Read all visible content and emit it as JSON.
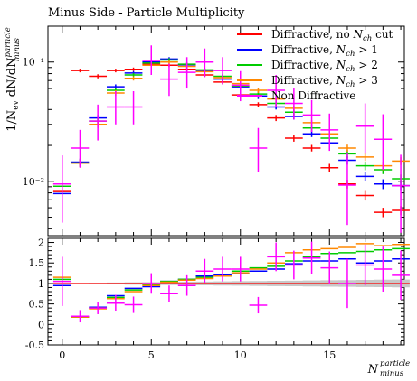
{
  "chart_data": [
    {
      "type": "scatter",
      "title": "Minus Side - Particle Multiplicity",
      "ylabel": "1/N_ev dN/dN_minus^particle",
      "yscale": "log",
      "ylim": [
        0.0035,
        0.2
      ],
      "xlim": [
        -0.8,
        19.2
      ],
      "yticks": [
        {
          "value": 0.01,
          "label": "10⁻²"
        },
        {
          "value": 0.1,
          "label": "10⁻¹"
        }
      ],
      "legend_position": "top-right",
      "series": [
        {
          "name": "Diffractive, no N_ch cut",
          "color": "#ff0000",
          "x": [
            0,
            1,
            2,
            3,
            4,
            5,
            6,
            7,
            8,
            9,
            10,
            11,
            12,
            13,
            14,
            15,
            16,
            17,
            18,
            19
          ],
          "y": [
            0.0082,
            0.085,
            0.076,
            0.085,
            0.087,
            0.096,
            0.094,
            0.087,
            0.078,
            0.068,
            0.053,
            0.044,
            0.034,
            0.023,
            0.019,
            0.013,
            0.0095,
            0.0076,
            0.0055,
            0.0057
          ],
          "yerr": [
            0.0008,
            0.003,
            0.003,
            0.003,
            0.003,
            0.003,
            0.003,
            0.003,
            0.003,
            0.003,
            0.002,
            0.002,
            0.002,
            0.0015,
            0.0012,
            0.001,
            0.0008,
            0.0007,
            0.0005,
            0.0005
          ]
        },
        {
          "name": "Diffractive, N_ch > 1",
          "color": "#0000ff",
          "x": [
            0,
            1,
            2,
            3,
            4,
            5,
            6,
            7,
            8,
            9,
            10,
            11,
            12,
            13,
            14,
            15,
            16,
            17,
            18,
            19
          ],
          "y": [
            0.0079,
            0.0145,
            0.034,
            0.062,
            0.081,
            0.1,
            0.106,
            0.095,
            0.085,
            0.072,
            0.062,
            0.052,
            0.042,
            0.035,
            0.025,
            0.021,
            0.015,
            0.011,
            0.0095,
            0.0092
          ],
          "yerr": [
            0.0008,
            0.001,
            0.002,
            0.003,
            0.003,
            0.004,
            0.004,
            0.004,
            0.003,
            0.003,
            0.003,
            0.003,
            0.002,
            0.002,
            0.0015,
            0.0015,
            0.0012,
            0.001,
            0.0009,
            0.0009
          ]
        },
        {
          "name": "Diffractive, N_ch > 2",
          "color": "#00cc00",
          "x": [
            0,
            1,
            2,
            3,
            4,
            5,
            6,
            7,
            8,
            9,
            10,
            11,
            12,
            13,
            14,
            15,
            16,
            17,
            18,
            19
          ],
          "y": [
            0.0091,
            0.0142,
            0.032,
            0.058,
            0.078,
            0.098,
            0.104,
            0.096,
            0.086,
            0.076,
            0.063,
            0.054,
            0.045,
            0.038,
            0.028,
            0.023,
            0.017,
            0.0135,
            0.0125,
            0.0105
          ],
          "yerr": [
            0.0009,
            0.001,
            0.002,
            0.003,
            0.003,
            0.004,
            0.004,
            0.004,
            0.003,
            0.003,
            0.003,
            0.003,
            0.002,
            0.002,
            0.0016,
            0.0015,
            0.0013,
            0.0011,
            0.001,
            0.0009
          ]
        },
        {
          "name": "Diffractive, N_ch > 3",
          "color": "#ff8800",
          "x": [
            0,
            1,
            2,
            3,
            4,
            5,
            6,
            7,
            8,
            9,
            10,
            11,
            12,
            13,
            14,
            15,
            16,
            17,
            18,
            19
          ],
          "y": [
            0.0095,
            0.0142,
            0.03,
            0.055,
            0.073,
            0.094,
            0.1,
            0.092,
            0.083,
            0.074,
            0.066,
            0.058,
            0.049,
            0.041,
            0.031,
            0.025,
            0.019,
            0.016,
            0.0135,
            0.0148
          ],
          "yerr": [
            0.0009,
            0.001,
            0.002,
            0.003,
            0.003,
            0.004,
            0.004,
            0.004,
            0.003,
            0.003,
            0.003,
            0.003,
            0.002,
            0.002,
            0.0016,
            0.0015,
            0.0013,
            0.0012,
            0.0011,
            0.0011
          ]
        },
        {
          "name": "Non Diffractive",
          "color": "#ff00ff",
          "x": [
            0,
            1,
            2,
            3,
            4,
            5,
            6,
            7,
            8,
            9,
            10,
            11,
            12,
            13,
            14,
            15,
            16,
            17,
            18,
            19
          ],
          "y": [
            0.0095,
            0.019,
            0.032,
            0.042,
            0.042,
            0.103,
            0.072,
            0.082,
            0.1,
            0.085,
            0.064,
            0.019,
            0.058,
            0.045,
            0.036,
            0.027,
            0.0093,
            0.029,
            0.0225,
            0.0092
          ],
          "yerr_low": [
            0.005,
            0.006,
            0.01,
            0.012,
            0.012,
            0.025,
            0.02,
            0.022,
            0.025,
            0.02,
            0.017,
            0.007,
            0.016,
            0.012,
            0.01,
            0.009,
            0.005,
            0.012,
            0.01,
            0.0055
          ],
          "yerr_high": [
            0.007,
            0.008,
            0.012,
            0.015,
            0.015,
            0.035,
            0.025,
            0.028,
            0.03,
            0.025,
            0.02,
            0.009,
            0.02,
            0.015,
            0.012,
            0.01,
            0.008,
            0.016,
            0.014,
            0.0075
          ]
        }
      ]
    },
    {
      "type": "scatter",
      "xlabel": "N_minus^particle",
      "ylim": [
        -0.5,
        2.1
      ],
      "xlim": [
        -0.8,
        19.2
      ],
      "yticks": [
        -0.5,
        0,
        0.5,
        1,
        1.5,
        2
      ],
      "xticks": [
        0,
        5,
        10,
        15
      ],
      "reference_line": 1,
      "series": [
        {
          "name": "Diffractive, no N_ch cut",
          "color": "#ff0000",
          "x": [
            0,
            1,
            2,
            3,
            4,
            5,
            6,
            7,
            8,
            9,
            10,
            11,
            12,
            13,
            14,
            15,
            16,
            17,
            18,
            19
          ],
          "y": [
            1,
            1,
            1,
            1,
            1,
            1,
            1,
            1,
            1,
            1,
            1,
            1,
            1,
            1,
            1,
            1,
            1,
            1,
            1,
            1
          ]
        },
        {
          "name": "Diffractive, N_ch > 1",
          "color": "#0000ff",
          "x": [
            0,
            1,
            2,
            3,
            4,
            5,
            6,
            7,
            8,
            9,
            10,
            11,
            12,
            13,
            14,
            15,
            16,
            17,
            18,
            19
          ],
          "y": [
            0.95,
            0.18,
            0.42,
            0.7,
            0.88,
            0.92,
            1.05,
            1.1,
            1.18,
            1.21,
            1.25,
            1.3,
            1.35,
            1.48,
            1.55,
            1.55,
            1.6,
            1.5,
            1.55,
            1.6
          ]
        },
        {
          "name": "Diffractive, N_ch > 2",
          "color": "#00cc00",
          "x": [
            0,
            1,
            2,
            3,
            4,
            5,
            6,
            7,
            8,
            9,
            10,
            11,
            12,
            13,
            14,
            15,
            16,
            17,
            18,
            19
          ],
          "y": [
            1.1,
            0.18,
            0.4,
            0.66,
            0.84,
            0.96,
            1.05,
            1.1,
            1.15,
            1.18,
            1.3,
            1.38,
            1.42,
            1.55,
            1.65,
            1.73,
            1.75,
            1.78,
            1.82,
            1.85
          ]
        },
        {
          "name": "Diffractive, N_ch > 3",
          "color": "#ff8800",
          "x": [
            0,
            1,
            2,
            3,
            4,
            5,
            6,
            7,
            8,
            9,
            10,
            11,
            12,
            13,
            14,
            15,
            16,
            17,
            18,
            19
          ],
          "y": [
            1.15,
            0.18,
            0.38,
            0.63,
            0.8,
            0.95,
            1.03,
            1.08,
            1.12,
            1.18,
            1.26,
            1.35,
            1.5,
            1.75,
            1.82,
            1.85,
            1.88,
            1.97,
            1.92,
            1.95
          ]
        },
        {
          "name": "Non Diffractive",
          "color": "#ff00ff",
          "x": [
            0,
            1,
            2,
            3,
            4,
            5,
            6,
            7,
            8,
            9,
            10,
            11,
            12,
            13,
            14,
            15,
            16,
            17,
            18,
            19
          ],
          "y": [
            1.05,
            0.2,
            0.4,
            0.52,
            0.48,
            1.0,
            0.75,
            0.95,
            1.3,
            1.35,
            1.35,
            0.47,
            1.65,
            1.45,
            1.62,
            1.38,
            1.0,
            1.45,
            1.35,
            1.2
          ],
          "yerr": [
            0.6,
            0.15,
            0.15,
            0.2,
            0.2,
            0.25,
            0.2,
            0.25,
            0.3,
            0.3,
            0.3,
            0.2,
            0.35,
            0.35,
            0.4,
            0.4,
            0.6,
            0.5,
            0.55,
            0.6
          ]
        }
      ]
    }
  ]
}
